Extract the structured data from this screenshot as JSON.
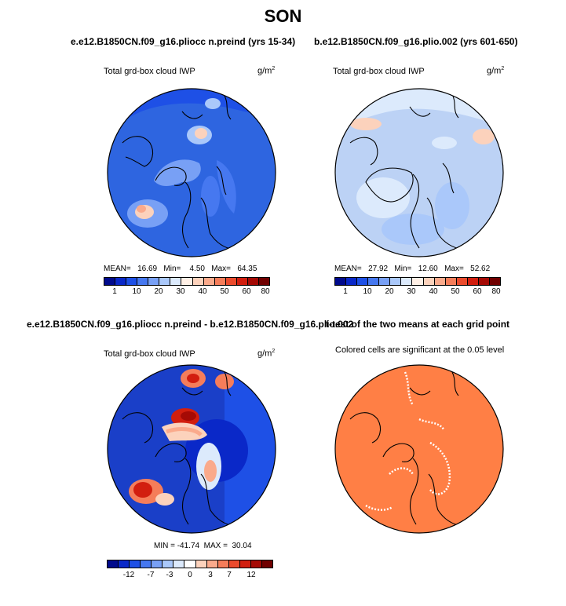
{
  "title": "SON",
  "panels": [
    {
      "case_title": "e.e12.B1850CN.f09_g16.pliocc n.preind (yrs 15-34)",
      "variable": "Total grd-box cloud IWP",
      "units": "g/m",
      "units_exp": "2",
      "stats": "MEAN=   16.69   Min=    4.50   Max=   64.35",
      "colorbar_labels": [
        "1",
        "10",
        "20",
        "30",
        "40",
        "50",
        "60",
        "80"
      ],
      "map_base_color": "#2e65e0"
    },
    {
      "case_title": "b.e12.B1850CN.f09_g16.plio.002 (yrs 601-650)",
      "variable": "Total grd-box cloud IWP",
      "units": "g/m",
      "units_exp": "2",
      "stats": "MEAN=   27.92   Min=   12.60   Max=   52.62",
      "colorbar_labels": [
        "1",
        "10",
        "20",
        "30",
        "40",
        "50",
        "60",
        "80"
      ],
      "map_base_color": "#bcd2f5"
    },
    {
      "case_title": "e.e12.B1850CN.f09_g16.pliocc n.preind - b.e12.B1850CN.f09_g16.plio.002",
      "variable": "Total grd-box cloud IWP",
      "units": "g/m",
      "units_exp": "2",
      "stats": "MIN = -41.74  MAX =  30.04",
      "colorbar_labels": [
        "-12",
        "-7",
        "-3",
        "0",
        "3",
        "7",
        "12"
      ],
      "map_base_color": "#1a3fc8"
    },
    {
      "case_title": "t-test of the two means at each grid point",
      "subtitle": "Colored cells are significant at the 0.05 level",
      "map_base_color": "#ff7f45"
    }
  ],
  "colorbars": {
    "absolute": [
      "#000a8c",
      "#0a28c8",
      "#1e50e6",
      "#4678f0",
      "#78a0f5",
      "#aac8fa",
      "#dceafc",
      "#fff0e6",
      "#fcd2bc",
      "#faaa8c",
      "#f57d5a",
      "#eb4b2d",
      "#d21e0f",
      "#a50a05",
      "#700000"
    ],
    "difference": [
      "#000a8c",
      "#0a28c8",
      "#1e50e6",
      "#4678f0",
      "#78a0f5",
      "#aac8fa",
      "#dceafc",
      "#ffffff",
      "#fcd2bc",
      "#faaa8c",
      "#f57d5a",
      "#eb4b2d",
      "#d21e0f",
      "#a50a05",
      "#700000"
    ]
  }
}
